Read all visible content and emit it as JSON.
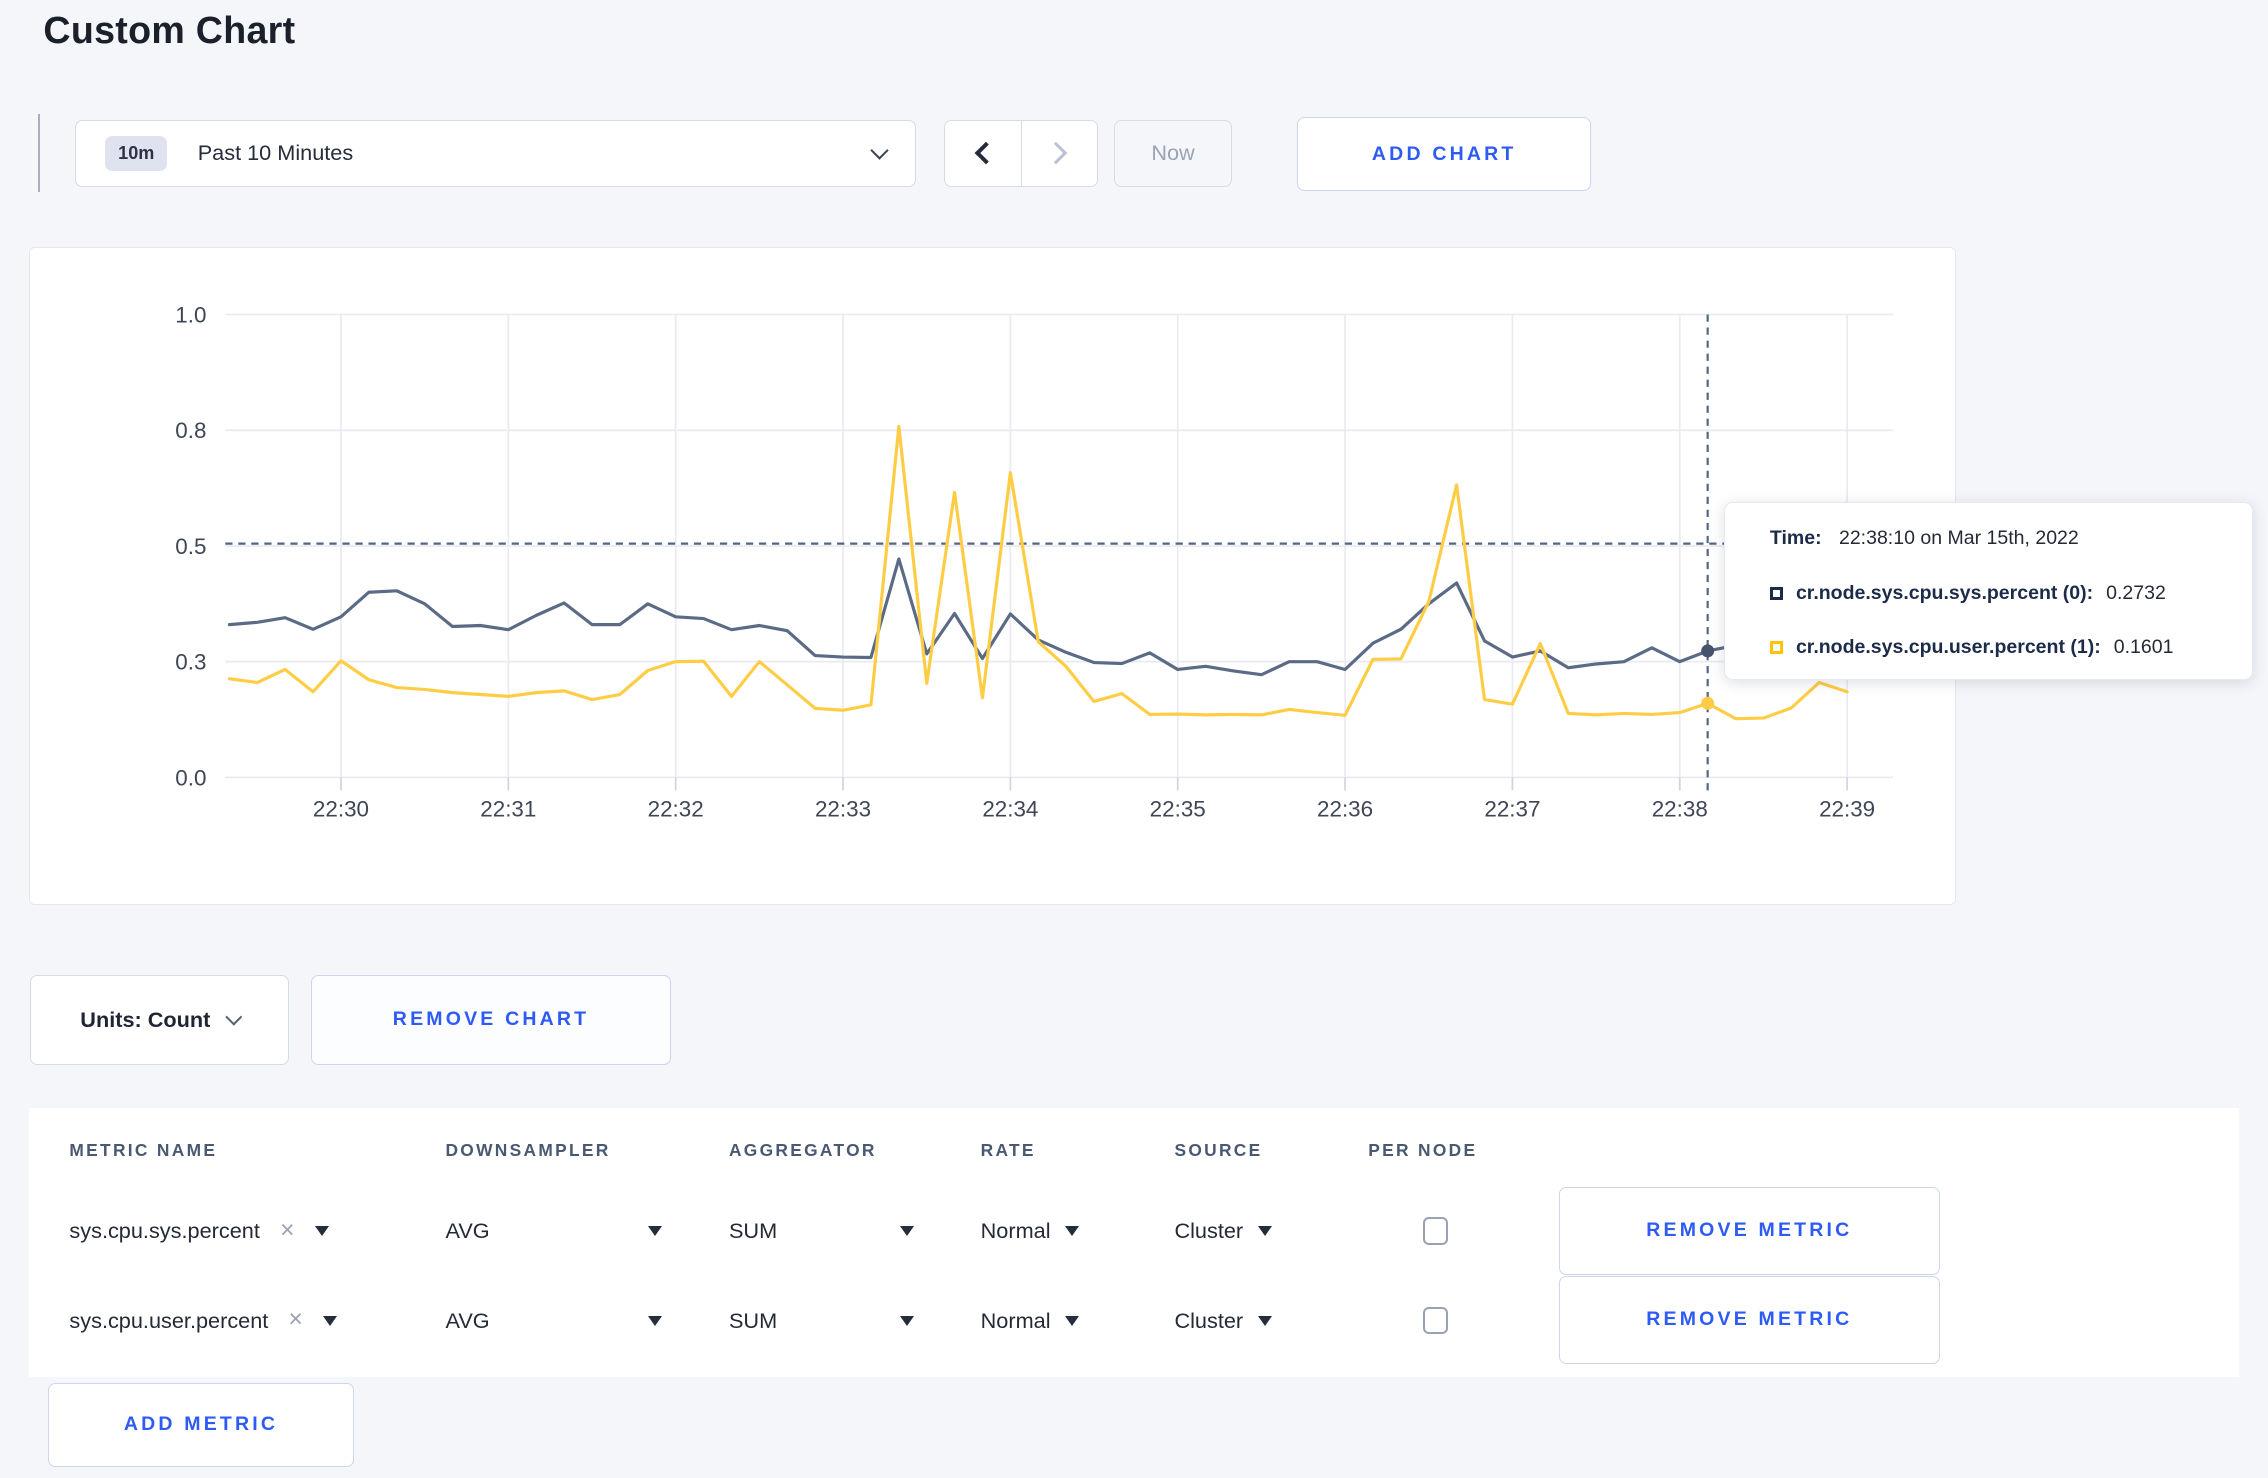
{
  "page_title": "Custom Chart",
  "accent_color": "#2e5bf6",
  "toolbar": {
    "range_badge": "10m",
    "range_label": "Past 10 Minutes",
    "now_label": "Now",
    "add_chart_label": "ADD CHART"
  },
  "chart_controls": {
    "units_label": "Units: Count",
    "remove_chart_label": "REMOVE CHART"
  },
  "tooltip": {
    "time_label": "Time:",
    "time_value": "22:38:10 on Mar 15th, 2022",
    "series": [
      {
        "label": "cr.node.sys.cpu.sys.percent (0):",
        "value": "0.2732",
        "swatch_color": "#1c2b4a"
      },
      {
        "label": "cr.node.sys.cpu.user.percent (1):",
        "value": "0.1601",
        "swatch_color": "#ffc40a"
      }
    ]
  },
  "chart_data": {
    "type": "line",
    "title": "",
    "xlabel": "",
    "ylabel": "",
    "grid": true,
    "legend_position": "none",
    "x_axis": {
      "start_seconds_from_2230": -40,
      "interval_seconds": 10,
      "tick_labels": [
        "22:30",
        "22:31",
        "22:32",
        "22:33",
        "22:34",
        "22:35",
        "22:36",
        "22:37",
        "22:38",
        "22:39"
      ]
    },
    "y_axis": {
      "range": [
        0,
        1
      ],
      "ticks": [
        {
          "value": 0,
          "label": "0.0"
        },
        {
          "value": 0.25,
          "label": "0.3"
        },
        {
          "value": 0.5,
          "label": "0.5"
        },
        {
          "value": 0.75,
          "label": "0.8"
        },
        {
          "value": 1,
          "label": "1.0"
        }
      ]
    },
    "crosshair": {
      "time": "22:38:10",
      "x_seconds_from_2230": 490,
      "hover_y_value": 0.505
    },
    "series": [
      {
        "name": "cr.node.sys.cpu.sys.percent",
        "color": "#5c6b85",
        "crosshair_value": 0.2732,
        "values": [
          0.33,
          0.335,
          0.345,
          0.32,
          0.347,
          0.4,
          0.403,
          0.375,
          0.326,
          0.328,
          0.319,
          0.35,
          0.377,
          0.33,
          0.33,
          0.375,
          0.347,
          0.343,
          0.319,
          0.328,
          0.317,
          0.263,
          0.26,
          0.259,
          0.472,
          0.267,
          0.354,
          0.257,
          0.353,
          0.297,
          0.27,
          0.248,
          0.246,
          0.269,
          0.233,
          0.24,
          0.23,
          0.222,
          0.25,
          0.25,
          0.233,
          0.29,
          0.32,
          0.375,
          0.42,
          0.295,
          0.26,
          0.273,
          0.237,
          0.245,
          0.25,
          0.28,
          0.25,
          0.2732,
          0.285,
          0.295,
          0.3,
          0.305,
          0.3
        ]
      },
      {
        "name": "cr.node.sys.cpu.user.percent",
        "color": "#ffcd45",
        "crosshair_value": 0.1601,
        "values": [
          0.213,
          0.205,
          0.233,
          0.185,
          0.252,
          0.211,
          0.194,
          0.19,
          0.183,
          0.179,
          0.175,
          0.183,
          0.187,
          0.168,
          0.179,
          0.231,
          0.25,
          0.251,
          0.175,
          0.25,
          0.2,
          0.149,
          0.145,
          0.157,
          0.758,
          0.203,
          0.616,
          0.172,
          0.658,
          0.293,
          0.239,
          0.164,
          0.181,
          0.136,
          0.137,
          0.135,
          0.136,
          0.135,
          0.147,
          0.14,
          0.134,
          0.255,
          0.256,
          0.38,
          0.632,
          0.168,
          0.158,
          0.289,
          0.138,
          0.135,
          0.138,
          0.136,
          0.14,
          0.1601,
          0.127,
          0.128,
          0.15,
          0.205,
          0.185
        ]
      }
    ]
  },
  "metrics_table": {
    "headers": [
      "METRIC NAME",
      "DOWNSAMPLER",
      "AGGREGATOR",
      "RATE",
      "SOURCE",
      "PER NODE"
    ],
    "close_glyph": "×",
    "rows": [
      {
        "metric": "sys.cpu.sys.percent",
        "downsampler": "AVG",
        "aggregator": "SUM",
        "rate": "Normal",
        "source": "Cluster",
        "per_node": false,
        "remove_label": "REMOVE METRIC"
      },
      {
        "metric": "sys.cpu.user.percent",
        "downsampler": "AVG",
        "aggregator": "SUM",
        "rate": "Normal",
        "source": "Cluster",
        "per_node": false,
        "remove_label": "REMOVE METRIC"
      }
    ],
    "add_metric_label": "ADD METRIC"
  }
}
